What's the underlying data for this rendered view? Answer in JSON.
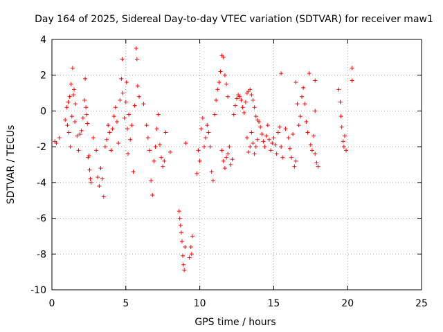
{
  "chart_data": {
    "type": "scatter",
    "title": "Day 164 of 2025, Sidereal Day-to-day VTEC variation (SDTVAR) for receiver maw1",
    "xlabel": "GPS time / hours",
    "ylabel": "SDTVAR / TECUs",
    "xlim": [
      0,
      25
    ],
    "ylim": [
      -10,
      4
    ],
    "xticks": [
      0,
      5,
      10,
      15,
      20,
      25
    ],
    "yticks": [
      -10,
      -8,
      -6,
      -4,
      -2,
      0,
      2,
      4
    ],
    "xtick_labels": [
      "0",
      "5",
      "10",
      "15",
      "20",
      "25"
    ],
    "ytick_labels": [
      "-10",
      "-8",
      "-6",
      "-4",
      "-2",
      "0",
      "2",
      "4"
    ],
    "grid": true,
    "marker": "+",
    "color": "#ff0000",
    "series": [
      {
        "name": "SDTVAR",
        "points": [
          [
            0.2,
            -1.7
          ],
          [
            0.3,
            -1.8
          ],
          [
            0.5,
            -1.5
          ],
          [
            0.9,
            -0.5
          ],
          [
            1.0,
            0.2
          ],
          [
            1.05,
            -0.8
          ],
          [
            1.1,
            0.5
          ],
          [
            1.15,
            -1.2
          ],
          [
            1.2,
            0.8
          ],
          [
            1.25,
            -2.0
          ],
          [
            1.3,
            1.5
          ],
          [
            1.35,
            -0.3
          ],
          [
            1.4,
            2.4
          ],
          [
            1.45,
            0.9
          ],
          [
            1.5,
            1.2
          ],
          [
            1.55,
            -0.6
          ],
          [
            1.6,
            0.4
          ],
          [
            1.7,
            -1.4
          ],
          [
            1.8,
            -2.2
          ],
          [
            1.9,
            -1.3
          ],
          [
            2.0,
            -1.1
          ],
          [
            2.1,
            -0.4
          ],
          [
            2.2,
            0.6
          ],
          [
            2.25,
            1.8
          ],
          [
            2.3,
            0.2
          ],
          [
            2.35,
            -0.2
          ],
          [
            2.4,
            -0.7
          ],
          [
            2.45,
            -2.6
          ],
          [
            2.5,
            -2.5
          ],
          [
            2.55,
            -3.3
          ],
          [
            2.6,
            -3.8
          ],
          [
            2.65,
            -4.0
          ],
          [
            2.8,
            -1.5
          ],
          [
            3.0,
            -2.2
          ],
          [
            3.1,
            -3.7
          ],
          [
            3.2,
            -4.2
          ],
          [
            3.3,
            -3.2
          ],
          [
            3.4,
            -3.8
          ],
          [
            3.5,
            -4.8
          ],
          [
            3.6,
            -2.0
          ],
          [
            3.7,
            -1.6
          ],
          [
            3.8,
            -0.8
          ],
          [
            3.9,
            -1.2
          ],
          [
            4.0,
            -2.2
          ],
          [
            4.1,
            -1.0
          ],
          [
            4.2,
            -0.3
          ],
          [
            4.3,
            0.2
          ],
          [
            4.4,
            -0.6
          ],
          [
            4.5,
            -1.8
          ],
          [
            4.6,
            0.6
          ],
          [
            4.7,
            1.8
          ],
          [
            4.75,
            2.9
          ],
          [
            4.8,
            1.0
          ],
          [
            4.9,
            -0.4
          ],
          [
            5.0,
            0.5
          ],
          [
            5.05,
            1.6
          ],
          [
            5.1,
            -1.0
          ],
          [
            5.15,
            -2.4
          ],
          [
            5.2,
            -0.2
          ],
          [
            5.3,
            -1.6
          ],
          [
            5.4,
            -0.8
          ],
          [
            5.5,
            -3.4
          ],
          [
            5.6,
            0.3
          ],
          [
            5.7,
            3.5
          ],
          [
            5.75,
            2.9
          ],
          [
            5.8,
            1.4
          ],
          [
            5.9,
            0.8
          ],
          [
            6.2,
            0.4
          ],
          [
            6.4,
            -0.8
          ],
          [
            6.5,
            -1.5
          ],
          [
            6.6,
            -2.2
          ],
          [
            6.7,
            -3.9
          ],
          [
            6.8,
            -4.7
          ],
          [
            6.9,
            -2.8
          ],
          [
            7.0,
            -2.0
          ],
          [
            7.1,
            -1.0
          ],
          [
            7.2,
            -0.2
          ],
          [
            7.3,
            -1.9
          ],
          [
            7.4,
            -2.6
          ],
          [
            7.5,
            -3.1
          ],
          [
            7.6,
            -2.8
          ],
          [
            7.7,
            -1.2
          ],
          [
            8.0,
            -2.3
          ],
          [
            8.6,
            -5.6
          ],
          [
            8.65,
            -6.0
          ],
          [
            8.7,
            -6.4
          ],
          [
            8.75,
            -6.8
          ],
          [
            8.8,
            -7.3
          ],
          [
            8.85,
            -8.1
          ],
          [
            8.9,
            -8.6
          ],
          [
            8.95,
            -8.9
          ],
          [
            9.0,
            -7.6
          ],
          [
            9.05,
            -1.8
          ],
          [
            9.3,
            -8.2
          ],
          [
            9.4,
            -7.6
          ],
          [
            9.45,
            -8.0
          ],
          [
            9.5,
            -7.0
          ],
          [
            9.8,
            -3.5
          ],
          [
            9.9,
            -2.2
          ],
          [
            10.0,
            -2.8
          ],
          [
            10.1,
            -1.0
          ],
          [
            10.2,
            -0.4
          ],
          [
            10.3,
            -2.0
          ],
          [
            10.4,
            -1.5
          ],
          [
            10.5,
            -0.8
          ],
          [
            10.6,
            -1.2
          ],
          [
            10.7,
            -2.0
          ],
          [
            10.8,
            -3.4
          ],
          [
            10.9,
            -3.9
          ],
          [
            11.0,
            -0.2
          ],
          [
            11.1,
            0.6
          ],
          [
            11.2,
            1.2
          ],
          [
            11.3,
            1.6
          ],
          [
            11.4,
            2.2
          ],
          [
            11.5,
            3.1
          ],
          [
            11.6,
            3.0
          ],
          [
            11.7,
            2.0
          ],
          [
            11.8,
            1.5
          ],
          [
            11.9,
            0.8
          ],
          [
            11.5,
            -2.2
          ],
          [
            11.6,
            -2.8
          ],
          [
            11.7,
            -3.2
          ],
          [
            11.8,
            -2.6
          ],
          [
            11.9,
            -2.4
          ],
          [
            12.0,
            -2.0
          ],
          [
            12.1,
            -3.0
          ],
          [
            12.2,
            -2.7
          ],
          [
            12.3,
            -0.2
          ],
          [
            12.4,
            0.3
          ],
          [
            12.5,
            0.7
          ],
          [
            12.6,
            0.9
          ],
          [
            12.7,
            0.8
          ],
          [
            12.8,
            0.6
          ],
          [
            12.9,
            0.2
          ],
          [
            13.0,
            -0.1
          ],
          [
            13.1,
            0.5
          ],
          [
            13.2,
            1.0
          ],
          [
            13.3,
            1.1
          ],
          [
            13.4,
            1.2
          ],
          [
            13.5,
            0.9
          ],
          [
            13.6,
            0.6
          ],
          [
            13.7,
            0.2
          ],
          [
            13.8,
            -0.3
          ],
          [
            13.9,
            -0.5
          ],
          [
            13.2,
            -1.5
          ],
          [
            13.3,
            -2.3
          ],
          [
            13.4,
            -2.0
          ],
          [
            13.5,
            -1.2
          ],
          [
            13.6,
            -1.8
          ],
          [
            13.7,
            -2.4
          ],
          [
            13.8,
            -2.0
          ],
          [
            13.9,
            -1.6
          ],
          [
            14.0,
            -0.6
          ],
          [
            14.1,
            -0.9
          ],
          [
            14.2,
            -1.3
          ],
          [
            14.3,
            -1.7
          ],
          [
            14.4,
            -2.0
          ],
          [
            14.5,
            -1.4
          ],
          [
            14.6,
            -0.8
          ],
          [
            14.7,
            -1.6
          ],
          [
            14.8,
            -2.2
          ],
          [
            14.9,
            -1.8
          ],
          [
            15.0,
            -1.5
          ],
          [
            15.1,
            -1.9
          ],
          [
            15.2,
            -2.4
          ],
          [
            15.3,
            -1.2
          ],
          [
            15.4,
            -0.9
          ],
          [
            15.5,
            -2.0
          ],
          [
            15.6,
            -2.6
          ],
          [
            15.5,
            2.1
          ],
          [
            15.8,
            -1.0
          ],
          [
            16.0,
            -1.5
          ],
          [
            16.1,
            -2.1
          ],
          [
            16.2,
            -2.6
          ],
          [
            16.3,
            -1.3
          ],
          [
            16.4,
            -3.1
          ],
          [
            16.5,
            -2.8
          ],
          [
            16.5,
            1.6
          ],
          [
            16.6,
            0.4
          ],
          [
            16.7,
            -0.8
          ],
          [
            16.8,
            -0.3
          ],
          [
            16.9,
            0.8
          ],
          [
            17.0,
            1.3
          ],
          [
            17.1,
            0.4
          ],
          [
            17.2,
            -0.6
          ],
          [
            17.3,
            -1.2
          ],
          [
            17.4,
            2.1
          ],
          [
            17.5,
            -1.9
          ],
          [
            17.6,
            -2.2
          ],
          [
            17.7,
            -1.4
          ],
          [
            17.8,
            -2.4
          ],
          [
            17.9,
            -2.9
          ],
          [
            18.0,
            -3.1
          ],
          [
            17.8,
            1.7
          ],
          [
            17.8,
            0.0
          ],
          [
            19.4,
            1.2
          ],
          [
            19.5,
            0.5
          ],
          [
            19.55,
            -0.3
          ],
          [
            19.6,
            -0.9
          ],
          [
            19.7,
            -1.7
          ],
          [
            19.75,
            -2.0
          ],
          [
            19.8,
            -1.4
          ],
          [
            19.9,
            -2.2
          ],
          [
            20.3,
            2.4
          ],
          [
            20.3,
            1.7
          ]
        ]
      }
    ]
  }
}
